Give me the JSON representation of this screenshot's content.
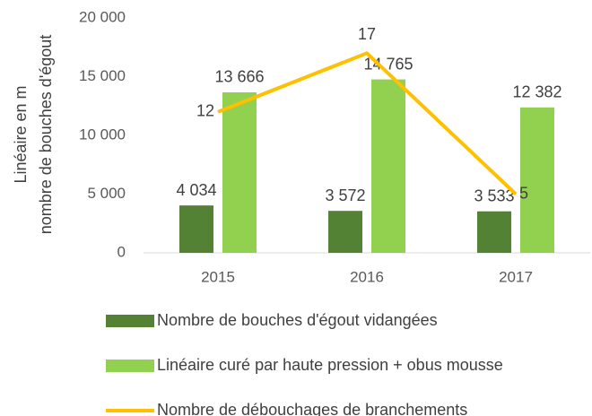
{
  "chart_data": {
    "type": "bar-line",
    "y_label": [
      "Linéaire en m",
      "nombre de bouches d'égout"
    ],
    "categories": [
      "2015",
      "2016",
      "2017"
    ],
    "series": [
      {
        "name": "Nombre de bouches d'égout vidangées",
        "type": "bar",
        "color": "#548235",
        "values": [
          4034,
          3572,
          3533
        ],
        "value_labels": [
          "4 034",
          "3 572",
          "3 533"
        ]
      },
      {
        "name": "Linéaire curé par haute pression + obus mousse",
        "type": "bar",
        "color": "#92d050",
        "values": [
          13666,
          14765,
          12382
        ],
        "value_labels": [
          "13 666",
          "14 765",
          "12 382"
        ]
      },
      {
        "name": "Nombre de débouchages de branchements",
        "type": "line",
        "axis": "y2",
        "color": "#ffc000",
        "values": [
          12,
          17,
          5
        ]
      }
    ],
    "ylim": [
      0,
      20000
    ],
    "yticks": [
      0,
      {
        "value": 5000,
        "label": "5 000"
      },
      {
        "value": 10000,
        "label": "10 000"
      },
      {
        "value": 15000,
        "label": "15 000"
      },
      {
        "value": 20000,
        "label": "20 000"
      }
    ],
    "y2lim": [
      0,
      20
    ],
    "legend": "bottom"
  }
}
